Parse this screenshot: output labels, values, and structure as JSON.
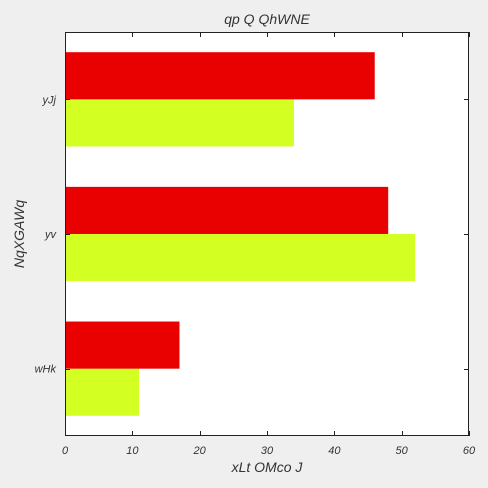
{
  "chart_data": {
    "type": "bar",
    "orientation": "horizontal",
    "title": "qp Q QhWNE",
    "xlabel": "xLt OMco J",
    "ylabel": "NqXGAWq",
    "categories": [
      "wHk",
      "yv",
      "yJj"
    ],
    "series": [
      {
        "values": [
          11,
          52,
          34
        ],
        "color": "#d4ff22"
      },
      {
        "values": [
          17,
          48,
          46
        ],
        "color": "#e90000"
      }
    ],
    "xlim": [
      0,
      60
    ],
    "xticks": [
      0,
      10,
      20,
      30,
      40,
      50,
      60
    ],
    "grid": false,
    "legend": "none",
    "background_color": "#efefef",
    "plot_background_color": "#ffffff"
  }
}
